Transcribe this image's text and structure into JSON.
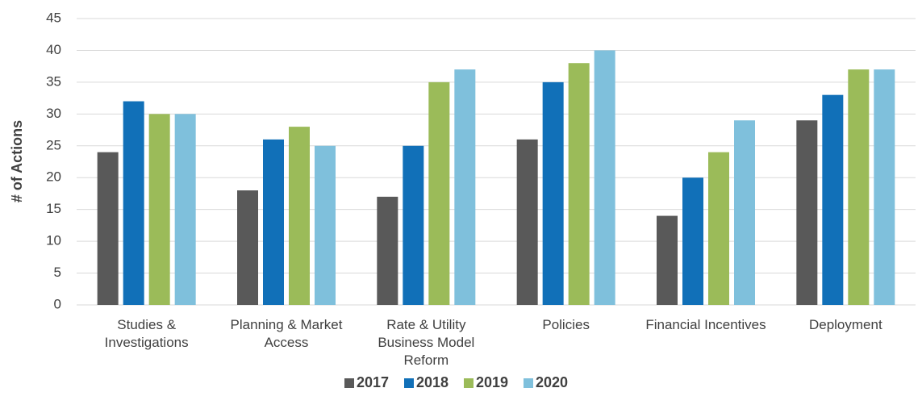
{
  "chart_data": {
    "type": "bar",
    "y_label": "# of Actions",
    "categories": [
      "Studies & Investigations",
      "Planning & Market Access",
      "Rate & Utility Business Model Reform",
      "Policies",
      "Financial Incentives",
      "Deployment"
    ],
    "series": [
      {
        "name": "2017",
        "color": "#595959",
        "values": [
          24,
          18,
          17,
          26,
          14,
          29
        ]
      },
      {
        "name": "2018",
        "color": "#1170b8",
        "values": [
          32,
          26,
          25,
          35,
          20,
          33
        ]
      },
      {
        "name": "2019",
        "color": "#9bbb59",
        "values": [
          30,
          28,
          35,
          38,
          24,
          37
        ]
      },
      {
        "name": "2020",
        "color": "#7fc0dc",
        "values": [
          30,
          25,
          37,
          40,
          29,
          37
        ]
      }
    ],
    "ylim": [
      0,
      45
    ],
    "yticks": [
      0,
      5,
      10,
      15,
      20,
      25,
      30,
      35,
      40,
      45
    ],
    "grid": true,
    "legend": "bottom"
  }
}
